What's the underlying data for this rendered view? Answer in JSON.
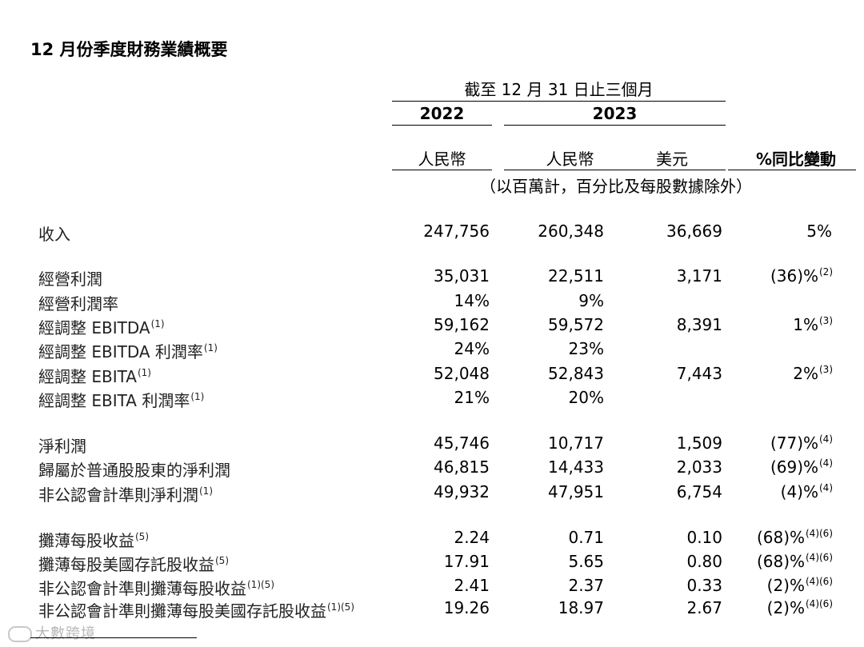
{
  "title": "12 月份季度財務業績概要",
  "header": {
    "period": "截至 12 月 31 日止三個月",
    "years": [
      "2022",
      "2023"
    ],
    "columns": [
      "人民幣",
      "人民幣",
      "美元",
      "%同比變動"
    ],
    "unit_note": "（以百萬計，百分比及每股數據除外）"
  },
  "rows": [
    {
      "label": "收入",
      "note": "",
      "v1": "247,756",
      "v2": "260,348",
      "v3": "36,669",
      "v4": "5%",
      "v4note": ""
    },
    {
      "label": "經營利潤",
      "note": "",
      "v1": "35,031",
      "v2": "22,511",
      "v3": "3,171",
      "v4": "(36)%",
      "v4note": "(2)"
    },
    {
      "label": "經營利潤率",
      "note": "",
      "v1": "14%",
      "v2": "9%",
      "v3": "",
      "v4": "",
      "v4note": ""
    },
    {
      "label": "經調整 EBITDA",
      "note": "(1)",
      "v1": "59,162",
      "v2": "59,572",
      "v3": "8,391",
      "v4": "1%",
      "v4note": "(3)"
    },
    {
      "label": "經調整 EBITDA 利潤率",
      "note": "(1)",
      "v1": "24%",
      "v2": "23%",
      "v3": "",
      "v4": "",
      "v4note": ""
    },
    {
      "label": "經調整 EBITA",
      "note": "(1)",
      "v1": "52,048",
      "v2": "52,843",
      "v3": "7,443",
      "v4": "2%",
      "v4note": "(3)"
    },
    {
      "label": "經調整 EBITA 利潤率",
      "note": "(1)",
      "v1": "21%",
      "v2": "20%",
      "v3": "",
      "v4": "",
      "v4note": ""
    },
    {
      "label": "淨利潤",
      "note": "",
      "v1": "45,746",
      "v2": "10,717",
      "v3": "1,509",
      "v4": "(77)%",
      "v4note": "(4)"
    },
    {
      "label": "歸屬於普通股股東的淨利潤",
      "note": "",
      "v1": "46,815",
      "v2": "14,433",
      "v3": "2,033",
      "v4": "(69)%",
      "v4note": "(4)"
    },
    {
      "label": "非公認會計準則淨利潤",
      "note": "(1)",
      "v1": "49,932",
      "v2": "47,951",
      "v3": "6,754",
      "v4": "(4)%",
      "v4note": "(4)"
    },
    {
      "label": "攤薄每股收益",
      "note": "(5)",
      "v1": "2.24",
      "v2": "0.71",
      "v3": "0.10",
      "v4": "(68)%",
      "v4note": "(4)(6)"
    },
    {
      "label": "攤薄每股美國存託股收益",
      "note": "(5)",
      "v1": "17.91",
      "v2": "5.65",
      "v3": "0.80",
      "v4": "(68)%",
      "v4note": "(4)(6)"
    },
    {
      "label": "非公認會計準則攤薄每股收益",
      "note": "(1)(5)",
      "v1": "2.41",
      "v2": "2.37",
      "v3": "0.33",
      "v4": "(2)%",
      "v4note": "(4)(6)"
    },
    {
      "label": "非公認會計準則攤薄每股美國存託股收益",
      "note": "(1)(5)",
      "v1": "19.26",
      "v2": "18.97",
      "v3": "2.67",
      "v4": "(2)%",
      "v4note": "(4)(6)"
    }
  ],
  "watermark": "大數跨境"
}
